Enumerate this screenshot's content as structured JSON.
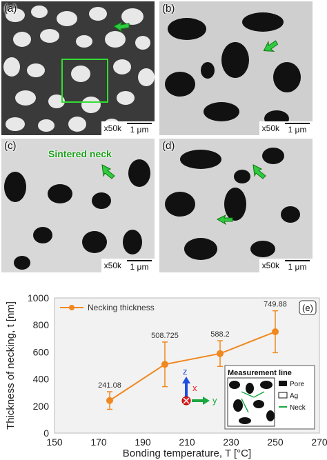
{
  "panels": [
    {
      "label": "(a)",
      "mag": "x50k",
      "scale": "1 μm"
    },
    {
      "label": "(b)",
      "mag": "x50k",
      "scale": "1 μm"
    },
    {
      "label": "(c)",
      "mag": "x50k",
      "scale": "1 μm",
      "annotation": "Sintered neck"
    },
    {
      "label": "(d)",
      "mag": "x50k",
      "scale": "1 μm"
    }
  ],
  "colors": {
    "series": "#f0881f",
    "arrow": "#2ecc40",
    "neck": "#1aa11a",
    "axis_z": "#1f4fe0",
    "axis_x": "#e0201f",
    "axis_y": "#1aa840"
  },
  "chart_data": {
    "type": "line",
    "panel_label": "(e)",
    "xlabel": "Bonding temperature, T [°C]",
    "ylabel": "Thickness of necking, t [nm]",
    "xlim": [
      150,
      270
    ],
    "ylim": [
      0,
      1000
    ],
    "xticks": [
      "150",
      "170",
      "190",
      "210",
      "230",
      "250",
      "270"
    ],
    "yticks": [
      "0",
      "200",
      "400",
      "600",
      "800",
      "1000"
    ],
    "grid": false,
    "legend_position": "top-left",
    "series": [
      {
        "name": "Necking thickness",
        "x": [
          175,
          200,
          225,
          250
        ],
        "y": [
          241.08,
          508.725,
          588.2,
          749.88
        ],
        "err": [
          65,
          165,
          95,
          155
        ],
        "labels": [
          "241.08",
          "508.725",
          "588.2",
          "749.88"
        ]
      }
    ],
    "axes_glyph": {
      "z": "z",
      "x": "x",
      "y": "y"
    },
    "inset": {
      "title": "Measurement line",
      "legend": [
        "Pore",
        "Ag",
        "Neck"
      ]
    }
  }
}
